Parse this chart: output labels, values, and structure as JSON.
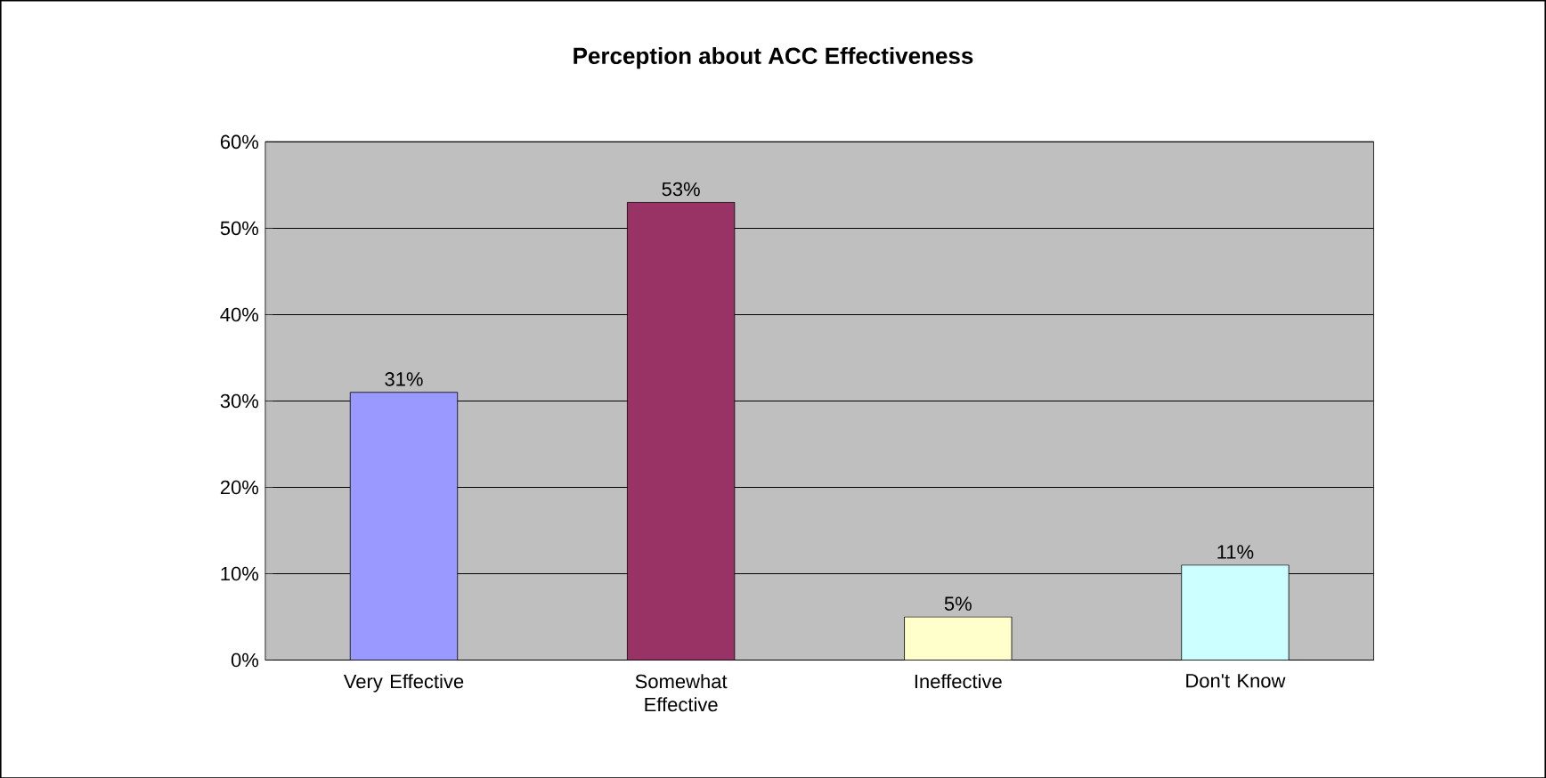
{
  "chart_data": {
    "type": "bar",
    "title": "**Perception about ACC Effectiveness**",
    "categories": [
      "Very Effective",
      "Somewhat Effective",
      "Ineffective",
      "Don't Know"
    ],
    "values": [
      31,
      53,
      5,
      11
    ],
    "colors": [
      "#9999ff",
      "#993366",
      "#ffffcc",
      "#ccffff"
    ],
    "value_labels": [
      "31%",
      "53%",
      "5%",
      "11%"
    ],
    "ylim": [
      0,
      60
    ],
    "yticks": [
      {
        "value": 0,
        "label": "0%"
      },
      {
        "value": 10,
        "label": "10%"
      },
      {
        "value": 20,
        "label": "20%"
      },
      {
        "value": 30,
        "label": "30%"
      },
      {
        "value": 40,
        "label": "40%"
      },
      {
        "value": 50,
        "label": "50%"
      },
      {
        "value": 60,
        "label": "60%"
      }
    ],
    "grid": "y"
  }
}
